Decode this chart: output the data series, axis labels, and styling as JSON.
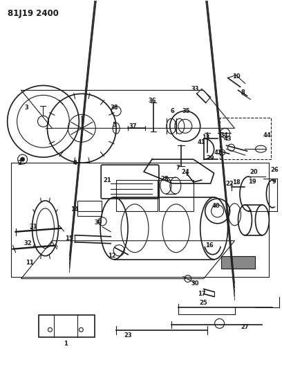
{
  "title_code": "81J19 2400",
  "bg_color": "#ffffff",
  "line_color": "#1a1a1a",
  "fig_width": 4.08,
  "fig_height": 5.33,
  "dpi": 100
}
